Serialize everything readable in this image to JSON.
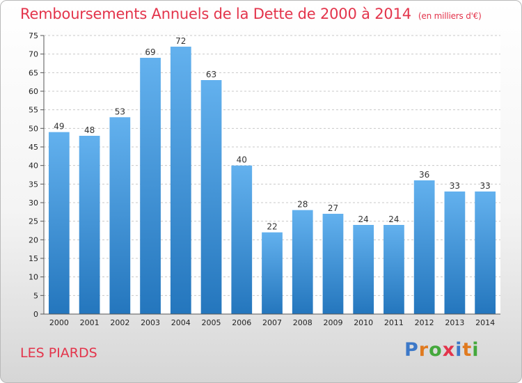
{
  "title": "Remboursements Annuels de la Dette de 2000 à 2014",
  "subtitle": "(en milliers d'€)",
  "commune": "LES PIARDS",
  "logo": {
    "letters": [
      "P",
      "r",
      "o",
      "x",
      "i",
      "t",
      "i"
    ],
    "colors": [
      "#3c78c8",
      "#e07a1f",
      "#44a83c",
      "#e3344b",
      "#3c78c8",
      "#e07a1f",
      "#44a83c"
    ]
  },
  "chart_data": {
    "type": "bar",
    "categories": [
      "2000",
      "2001",
      "2002",
      "2003",
      "2004",
      "2005",
      "2006",
      "2007",
      "2008",
      "2009",
      "2010",
      "2011",
      "2012",
      "2013",
      "2014"
    ],
    "values": [
      49,
      48,
      53,
      69,
      72,
      63,
      40,
      22,
      28,
      27,
      24,
      24,
      36,
      33,
      33
    ],
    "ylim": [
      0,
      75
    ],
    "yticks": [
      "0",
      "5",
      "10",
      "15",
      "20",
      "25",
      "30",
      "35",
      "40",
      "45",
      "50",
      "55",
      "60",
      "65",
      "70",
      "75"
    ],
    "grid": true,
    "bar_color": "#3a8ed6"
  }
}
